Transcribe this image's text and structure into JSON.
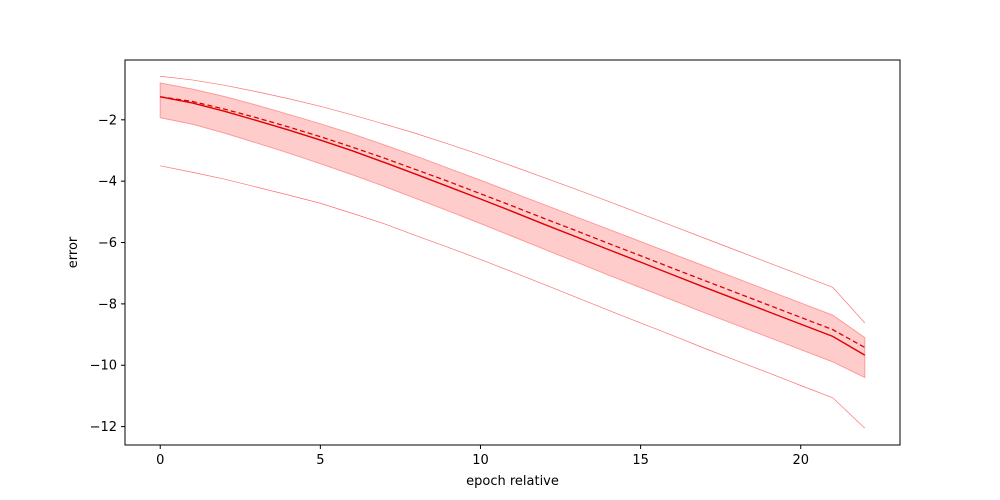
{
  "chart_data": {
    "type": "line",
    "title": "",
    "xlabel": "epoch relative",
    "ylabel": "error",
    "xlim": [
      -1.1,
      23.1
    ],
    "ylim": [
      -12.6,
      -0.05
    ],
    "xticks": [
      0,
      5,
      10,
      15,
      20
    ],
    "xtick_labels": [
      "0",
      "5",
      "10",
      "15",
      "20"
    ],
    "yticks": [
      -2,
      -4,
      -6,
      -8,
      -10,
      -12
    ],
    "ytick_labels": [
      "−2",
      "−4",
      "−6",
      "−8",
      "−10",
      "−12"
    ],
    "grid": false,
    "legend": "none",
    "x": [
      0,
      1,
      2,
      3,
      4,
      5,
      6,
      7,
      8,
      9,
      10,
      11,
      12,
      13,
      14,
      15,
      16,
      17,
      18,
      19,
      20,
      21,
      22
    ],
    "series": [
      {
        "role": "mean",
        "style": "solid",
        "color": "#e00000",
        "values": [
          -1.25,
          -1.45,
          -1.72,
          -2.02,
          -2.33,
          -2.66,
          -3.01,
          -3.39,
          -3.78,
          -4.18,
          -4.58,
          -4.99,
          -5.41,
          -5.82,
          -6.23,
          -6.64,
          -7.05,
          -7.46,
          -7.86,
          -8.26,
          -8.66,
          -9.06,
          -9.67
        ]
      },
      {
        "role": "median",
        "style": "dashed",
        "color": "#e00000",
        "values": [
          -1.25,
          -1.4,
          -1.65,
          -1.93,
          -2.23,
          -2.55,
          -2.89,
          -3.25,
          -3.63,
          -4.01,
          -4.41,
          -4.81,
          -5.22,
          -5.62,
          -6.03,
          -6.43,
          -6.84,
          -7.24,
          -7.64,
          -8.04,
          -8.44,
          -8.84,
          -9.42
        ]
      },
      {
        "role": "max",
        "style": "thin",
        "color": "#ff7070",
        "values": [
          -0.58,
          -0.7,
          -0.87,
          -1.08,
          -1.31,
          -1.56,
          -1.84,
          -2.14,
          -2.45,
          -2.79,
          -3.14,
          -3.51,
          -3.89,
          -4.27,
          -4.66,
          -5.06,
          -5.46,
          -5.86,
          -6.26,
          -6.66,
          -7.06,
          -7.46,
          -8.62
        ]
      },
      {
        "role": "min",
        "style": "thin",
        "color": "#ff7070",
        "values": [
          -3.5,
          -3.71,
          -3.93,
          -4.19,
          -4.45,
          -4.72,
          -5.05,
          -5.39,
          -5.78,
          -6.16,
          -6.55,
          -6.96,
          -7.37,
          -7.79,
          -8.21,
          -8.62,
          -9.03,
          -9.45,
          -9.85,
          -10.25,
          -10.66,
          -11.06,
          -12.05
        ]
      }
    ],
    "band": {
      "color": "#ff9999",
      "upper": [
        -0.8,
        -1.0,
        -1.24,
        -1.52,
        -1.82,
        -2.13,
        -2.46,
        -2.82,
        -3.19,
        -3.58,
        -3.97,
        -4.37,
        -4.77,
        -5.17,
        -5.57,
        -5.97,
        -6.37,
        -6.77,
        -7.17,
        -7.57,
        -7.97,
        -8.37,
        -9.1
      ],
      "lower": [
        -1.93,
        -2.14,
        -2.43,
        -2.75,
        -3.08,
        -3.43,
        -3.79,
        -4.17,
        -4.57,
        -4.97,
        -5.38,
        -5.8,
        -6.22,
        -6.64,
        -7.06,
        -7.47,
        -7.88,
        -8.29,
        -8.69,
        -9.09,
        -9.49,
        -9.89,
        -10.4
      ]
    }
  }
}
